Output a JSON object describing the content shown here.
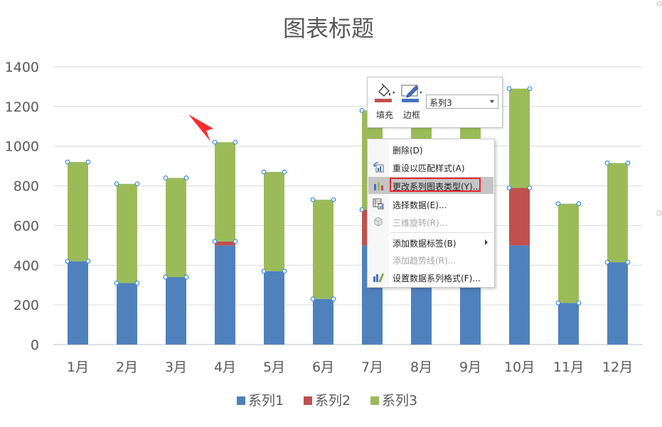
{
  "chart_data": {
    "type": "bar",
    "stacked": true,
    "title": "图表标题",
    "xlabel": "",
    "ylabel": "",
    "categories": [
      "1月",
      "2月",
      "3月",
      "4月",
      "5月",
      "6月",
      "7月",
      "8月",
      "9月",
      "10月",
      "11月",
      "12月"
    ],
    "series": [
      {
        "name": "系列1",
        "color": "#4f81bd",
        "values": [
          420,
          310,
          340,
          500,
          370,
          230,
          500,
          500,
          500,
          500,
          210,
          415
        ]
      },
      {
        "name": "系列2",
        "color": "#c0504d",
        "values": [
          0,
          0,
          0,
          20,
          0,
          0,
          180,
          0,
          0,
          290,
          0,
          0
        ]
      },
      {
        "name": "系列3",
        "color": "#9bbb59",
        "values": [
          500,
          500,
          500,
          500,
          500,
          500,
          500,
          700,
          650,
          500,
          500,
          500
        ]
      }
    ],
    "ylim": [
      0,
      1400
    ],
    "yticks": [
      "0",
      "200",
      "400",
      "600",
      "800",
      "1000",
      "1200",
      "1400"
    ],
    "grid": true,
    "legend_position": "bottom",
    "selected_series": "系列3"
  },
  "toolbar": {
    "fill_label": "填充",
    "border_label": "边框",
    "series_select_value": "系列3",
    "fill_color": "#c0504d",
    "border_color": "#4472c4"
  },
  "context_menu": {
    "items": [
      {
        "label": "删除(D)",
        "icon": "none",
        "disabled": false
      },
      {
        "label": "重设以匹配样式(A)",
        "icon": "reset-style-icon",
        "disabled": false
      },
      {
        "label": "更改系列图表类型(Y)...",
        "icon": "chart-type-icon",
        "disabled": false,
        "highlighted": true
      },
      {
        "label": "选择数据(E)...",
        "icon": "select-data-icon",
        "disabled": false
      },
      {
        "label": "三维旋转(R)...",
        "icon": "3d-rotate-icon",
        "disabled": true
      },
      {
        "label": "添加数据标签(B)",
        "icon": "none",
        "disabled": false,
        "submenu": true
      },
      {
        "label": "添加趋势线(R)...",
        "icon": "none",
        "disabled": true
      },
      {
        "label": "设置数据系列格式(F)...",
        "icon": "format-series-icon",
        "disabled": false
      }
    ]
  }
}
